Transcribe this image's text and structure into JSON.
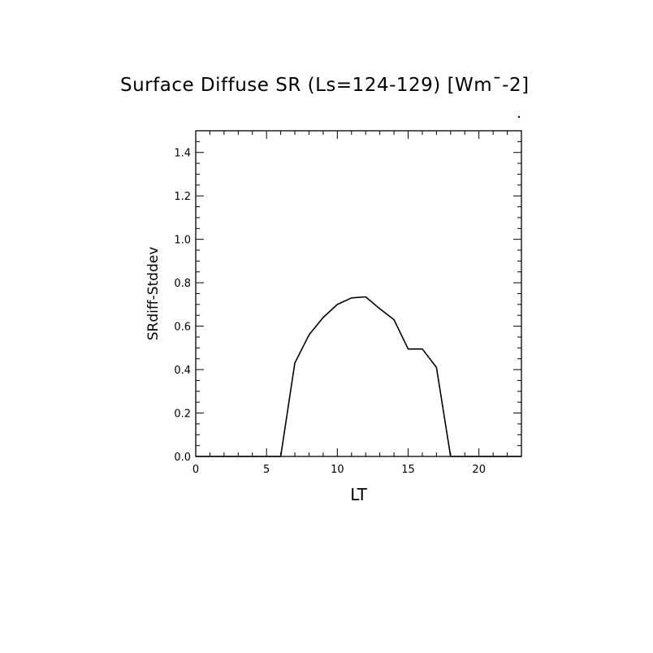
{
  "chart_data": {
    "type": "line",
    "title": "Surface Diffuse SR (Ls=124-129) [Wm¯-2]",
    "xlabel": "LT",
    "ylabel": "SRdiff-Stddev",
    "xlim": [
      0,
      23
    ],
    "ylim": [
      0,
      1.5
    ],
    "x_ticks": [
      0,
      5,
      10,
      15,
      20
    ],
    "x_tick_labels": [
      "0",
      "5",
      "10",
      "15",
      "20"
    ],
    "y_ticks": [
      0.0,
      0.2,
      0.4,
      0.6,
      0.8,
      1.0,
      1.2,
      1.4
    ],
    "y_tick_labels": [
      "0.0",
      "0.2",
      "0.4",
      "0.6",
      "0.8",
      "1.0",
      "1.2",
      "1.4"
    ],
    "x_minor_step": 1,
    "y_minor_step": 0.05,
    "grid": false,
    "legend": "none",
    "line_color": "#000000",
    "series": [
      {
        "x": [
          0,
          1,
          2,
          3,
          4,
          5,
          6,
          7,
          8,
          9,
          10,
          11,
          12,
          13,
          14,
          15,
          16,
          17,
          18,
          19,
          20,
          21,
          22,
          23
        ],
        "values": [
          0,
          0,
          0,
          0,
          0,
          0,
          0,
          0.43,
          0.56,
          0.64,
          0.7,
          0.73,
          0.735,
          0.68,
          0.63,
          0.495,
          0.495,
          0.41,
          0,
          0,
          0,
          0,
          0,
          0
        ]
      }
    ]
  }
}
